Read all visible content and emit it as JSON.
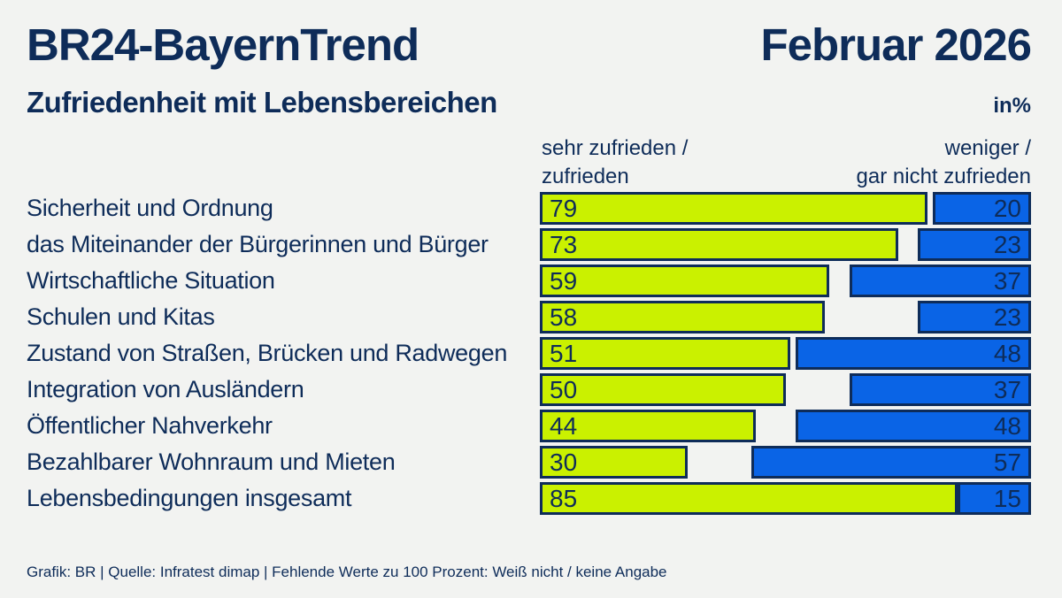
{
  "header": {
    "title": "BR24-BayernTrend",
    "date": "Februar 2026",
    "subtitle": "Zufriedenheit mit Lebensbereichen",
    "unit": "in%"
  },
  "legend": {
    "positive_line1": "sehr zufrieden /",
    "positive_line2": "zufrieden",
    "negative_line1": "weniger /",
    "negative_line2": "gar nicht zufrieden"
  },
  "chart_data": {
    "type": "bar",
    "orientation": "horizontal",
    "title": "BR24-BayernTrend — Zufriedenheit mit Lebensbereichen, Februar 2026",
    "unit": "percent",
    "xlim": [
      0,
      100
    ],
    "grid": false,
    "legend_position": "top",
    "categories": [
      "Sicherheit und Ordnung",
      "das Miteinander der Bürgerinnen und Bürger",
      "Wirtschaftliche Situation",
      "Schulen und Kitas",
      "Zustand von Straßen, Brücken und Radwegen",
      "Integration von Ausländern",
      "Öffentlicher Nahverkehr",
      "Bezahlbarer Wohnraum und Mieten",
      "Lebensbedingungen insgesamt"
    ],
    "series": [
      {
        "name": "sehr zufrieden / zufrieden",
        "color": "#caf100",
        "anchor": "left",
        "values": [
          79,
          73,
          59,
          58,
          51,
          50,
          44,
          30,
          85
        ]
      },
      {
        "name": "weniger / gar nicht zufrieden",
        "color": "#0a64e6",
        "anchor": "right",
        "values": [
          20,
          23,
          37,
          23,
          48,
          37,
          48,
          57,
          15
        ]
      }
    ]
  },
  "colors": {
    "background": "#f2f3f1",
    "navy": "#0e2c59",
    "positive_green": "#caf100",
    "negative_blue": "#0a64e6"
  },
  "footer": {
    "text": "Grafik: BR | Quelle: Infratest dimap | Fehlende Werte zu 100 Prozent: Weiß nicht / keine Angabe"
  }
}
